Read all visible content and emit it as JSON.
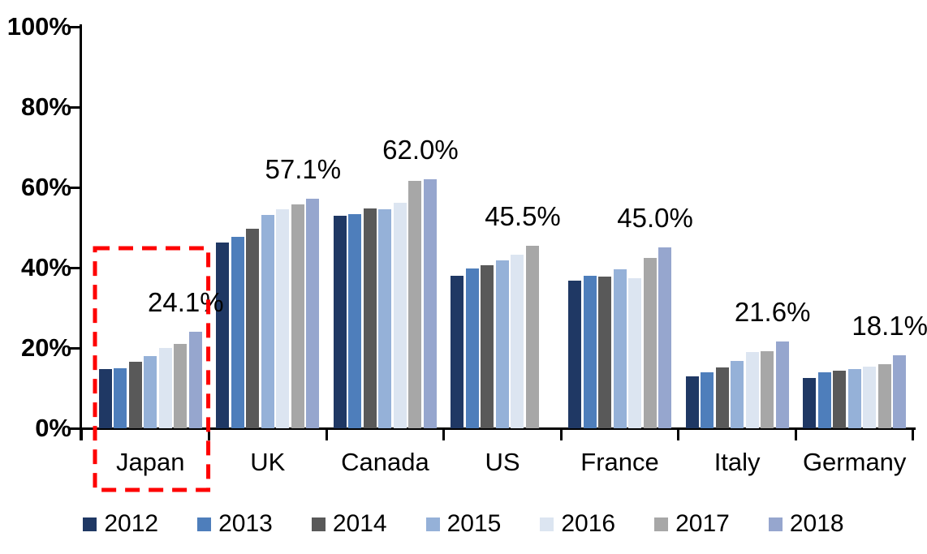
{
  "chart_data": {
    "type": "bar",
    "title": "",
    "categories": [
      "Japan",
      "UK",
      "Canada",
      "US",
      "France",
      "Italy",
      "Germany"
    ],
    "series": [
      {
        "name": "2012",
        "color": "#1F3864",
        "values": [
          14.8,
          46.2,
          53.0,
          38.0,
          36.7,
          13.0,
          12.5
        ]
      },
      {
        "name": "2013",
        "color": "#4E7EBB",
        "values": [
          15.0,
          47.7,
          53.3,
          39.8,
          37.9,
          14.0,
          13.9
        ]
      },
      {
        "name": "2014",
        "color": "#595959",
        "values": [
          16.6,
          49.8,
          54.8,
          40.7,
          37.8,
          15.1,
          14.3
        ]
      },
      {
        "name": "2015",
        "color": "#95B1D8",
        "values": [
          18.0,
          53.1,
          54.6,
          41.8,
          39.5,
          16.7,
          14.8
        ]
      },
      {
        "name": "2016",
        "color": "#DCE5F1",
        "values": [
          20.0,
          54.6,
          56.2,
          43.3,
          37.4,
          18.9,
          15.3
        ]
      },
      {
        "name": "2017",
        "color": "#A7A7A7",
        "values": [
          21.0,
          55.7,
          61.6,
          45.5,
          42.5,
          19.1,
          15.9
        ]
      },
      {
        "name": "2018",
        "color": "#96A6CE",
        "values": [
          24.1,
          57.1,
          62.0,
          null,
          45.0,
          21.6,
          18.1
        ]
      }
    ],
    "value_labels": [
      "24.1%",
      "57.1%",
      "62.0%",
      "45.5%",
      "45.0%",
      "21.6%",
      "18.1%"
    ],
    "y_axis": {
      "min": 0,
      "max": 100,
      "tick_step": 20,
      "tick_labels": [
        "0%",
        "20%",
        "40%",
        "60%",
        "80%",
        "100%"
      ]
    },
    "grid": false,
    "legend_position": "bottom",
    "annotation": {
      "type": "dashed-box",
      "target_category": "Japan",
      "color": "#FE0000"
    },
    "colors": {
      "axis": "#000000",
      "text": "#000000",
      "background": "#FFFFFF"
    }
  }
}
